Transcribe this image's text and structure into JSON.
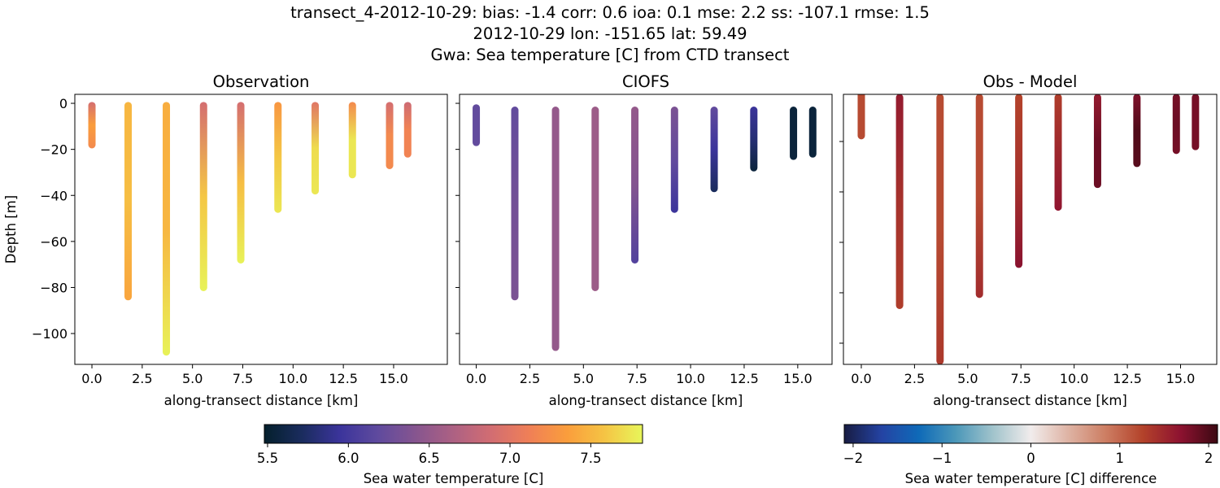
{
  "figure": {
    "title_line1": "transect_4-2012-10-29: bias: -1.4  corr: 0.6  ioa: 0.1  mse: 2.2  ss: -107.1  rmse: 1.5",
    "title_line2": "2012-10-29 lon: -151.65 lat: 59.49",
    "title_line3": "Gwa: Sea temperature [C] from CTD transect"
  },
  "colormaps": {
    "thermal": [
      "#04202c",
      "#1a2c5e",
      "#3b349b",
      "#5f4a9e",
      "#86558f",
      "#ad6183",
      "#d26d72",
      "#ef7f57",
      "#fa9d3c",
      "#f5c444",
      "#e7f65a"
    ],
    "balance": [
      "#181c43",
      "#2443a3",
      "#0f6ab8",
      "#4c98b9",
      "#a2c4cc",
      "#f1ecec",
      "#deb3a4",
      "#cd7e63",
      "#b3422a",
      "#8d1230",
      "#3c0912"
    ]
  },
  "chart_data": [
    {
      "type": "scatter",
      "title": "Observation",
      "xlabel": "along-transect distance [km]",
      "ylabel": "Depth [m]",
      "xlim": [
        -0.85,
        17.67
      ],
      "ylim": [
        -113.4,
        3.9
      ],
      "xticks": [
        "0.0",
        "2.5",
        "5.0",
        "7.5",
        "10.0",
        "12.5",
        "15.0"
      ],
      "yticks": [
        "0",
        "−20",
        "−40",
        "−60",
        "−80",
        "−100"
      ],
      "colormap": "thermal",
      "clim": [
        5.48,
        7.82
      ],
      "stations": [
        {
          "x": 0.0,
          "top": -1,
          "bottom": -18,
          "values": [
            6.9,
            7.35,
            7.2
          ]
        },
        {
          "x": 1.8,
          "top": -1,
          "bottom": -84,
          "values": [
            7.5,
            7.55,
            7.4
          ]
        },
        {
          "x": 3.7,
          "top": -1,
          "bottom": -108,
          "values": [
            7.45,
            7.5,
            7.8
          ]
        },
        {
          "x": 5.55,
          "top": -1,
          "bottom": -80,
          "values": [
            6.9,
            7.6,
            7.8
          ]
        },
        {
          "x": 7.4,
          "top": -1,
          "bottom": -68,
          "values": [
            6.9,
            7.55,
            7.8
          ]
        },
        {
          "x": 9.25,
          "top": -1,
          "bottom": -46,
          "values": [
            7.3,
            7.6,
            7.75
          ]
        },
        {
          "x": 11.1,
          "top": -1,
          "bottom": -38,
          "values": [
            7.0,
            7.7,
            7.75
          ]
        },
        {
          "x": 12.95,
          "top": -1,
          "bottom": -31,
          "values": [
            7.2,
            7.75,
            7.75
          ]
        },
        {
          "x": 14.8,
          "top": -1,
          "bottom": -27,
          "values": [
            6.9,
            7.2,
            7.2
          ]
        },
        {
          "x": 15.7,
          "top": -1,
          "bottom": -22,
          "values": [
            6.85,
            7.15,
            7.15
          ]
        }
      ]
    },
    {
      "type": "scatter",
      "title": "CIOFS",
      "xlabel": "along-transect distance [km]",
      "xlim": [
        -0.78,
        16.6
      ],
      "ylim": [
        -113.4,
        3.9
      ],
      "xticks": [
        "0.0",
        "2.5",
        "5.0",
        "7.5",
        "10.0",
        "12.5",
        "15.0"
      ],
      "colormap": "thermal",
      "clim": [
        5.48,
        7.82
      ],
      "stations": [
        {
          "x": 0.0,
          "top": -2,
          "bottom": -17,
          "values": [
            6.2,
            6.2,
            6.2
          ]
        },
        {
          "x": 1.8,
          "top": -3,
          "bottom": -84,
          "values": [
            6.2,
            6.3,
            6.35
          ]
        },
        {
          "x": 3.7,
          "top": -3,
          "bottom": -106,
          "values": [
            6.5,
            6.5,
            6.5
          ]
        },
        {
          "x": 5.55,
          "top": -3,
          "bottom": -80,
          "values": [
            6.55,
            6.55,
            6.55
          ]
        },
        {
          "x": 7.4,
          "top": -3,
          "bottom": -68,
          "values": [
            6.5,
            6.4,
            6.1
          ]
        },
        {
          "x": 9.25,
          "top": -3,
          "bottom": -46,
          "values": [
            6.35,
            6.2,
            5.95
          ]
        },
        {
          "x": 11.1,
          "top": -3,
          "bottom": -37,
          "values": [
            6.2,
            5.95,
            5.7
          ]
        },
        {
          "x": 12.95,
          "top": -3,
          "bottom": -28,
          "values": [
            5.95,
            5.8,
            5.55
          ]
        },
        {
          "x": 14.8,
          "top": -3,
          "bottom": -23,
          "values": [
            5.55,
            5.55,
            5.55
          ]
        },
        {
          "x": 15.7,
          "top": -3,
          "bottom": -22,
          "values": [
            5.55,
            5.55,
            5.55
          ]
        }
      ]
    },
    {
      "type": "scatter",
      "title": "Obs - Model",
      "xlabel": "along-transect distance [km]",
      "xlim": [
        -0.84,
        16.7
      ],
      "ylim": [
        -108.4,
        -1.3
      ],
      "xticks": [
        "0.0",
        "2.5",
        "5.0",
        "7.5",
        "10.0",
        "12.5",
        "15.0"
      ],
      "colormap": "balance",
      "clim": [
        -2.1,
        2.1
      ],
      "stations": [
        {
          "x": 0.0,
          "top": 0,
          "bottom": -17.7,
          "values": [
            1.2,
            1.2,
            1.2
          ]
        },
        {
          "x": 1.8,
          "top": -2.6,
          "bottom": -85,
          "values": [
            1.6,
            1.4,
            1.3
          ]
        },
        {
          "x": 3.7,
          "top": -2.6,
          "bottom": -107,
          "values": [
            1.2,
            1.2,
            1.35
          ]
        },
        {
          "x": 5.55,
          "top": -2.6,
          "bottom": -80.6,
          "values": [
            1.2,
            1.2,
            1.45
          ]
        },
        {
          "x": 7.4,
          "top": -2.6,
          "bottom": -68.7,
          "values": [
            1.25,
            1.4,
            1.7
          ]
        },
        {
          "x": 9.25,
          "top": -2.6,
          "bottom": -46,
          "values": [
            1.3,
            1.5,
            1.65
          ]
        },
        {
          "x": 11.1,
          "top": -2.6,
          "bottom": -37,
          "values": [
            1.6,
            1.85,
            1.85
          ]
        },
        {
          "x": 12.95,
          "top": -2.6,
          "bottom": -28.7,
          "values": [
            1.75,
            2.0,
            1.95
          ]
        },
        {
          "x": 14.8,
          "top": -2.6,
          "bottom": -23.5,
          "values": [
            1.8,
            1.85,
            1.8
          ]
        },
        {
          "x": 15.7,
          "top": -2.6,
          "bottom": -22,
          "values": [
            1.8,
            1.8,
            1.8
          ]
        }
      ]
    }
  ],
  "colorbars": [
    {
      "label": "Sea water temperature [C]",
      "colormap": "thermal",
      "range": [
        5.48,
        7.82
      ],
      "ticks": [
        5.5,
        6.0,
        6.5,
        7.0,
        7.5
      ],
      "tick_labels": [
        "5.5",
        "6.0",
        "6.5",
        "7.0",
        "7.5"
      ]
    },
    {
      "label": "Sea water temperature [C] difference",
      "colormap": "balance",
      "range": [
        -2.1,
        2.1
      ],
      "ticks": [
        -2,
        -1,
        0,
        1,
        2
      ],
      "tick_labels": [
        "−2",
        "−1",
        "0",
        "1",
        "2"
      ]
    }
  ]
}
